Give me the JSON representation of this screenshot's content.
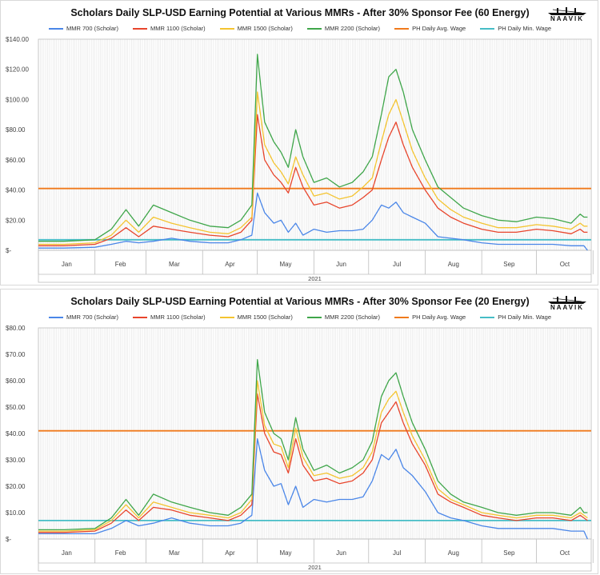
{
  "logo": {
    "text": "NAAVIK"
  },
  "colors": {
    "mmr700": "#4a86e8",
    "mmr1100": "#e8452c",
    "mmr1500": "#f4c430",
    "mmr2200": "#3fa64a",
    "avg_wage": "#f07a1c",
    "min_wage": "#46bdc6"
  },
  "chart_data": [
    {
      "type": "line",
      "title": "Scholars Daily SLP-USD Earning Potential at Various MMRs - After 30% Sponsor Fee (60 Energy)",
      "xlabel": "2021",
      "x_ticks": [
        "Jan",
        "Feb",
        "Mar",
        "Apr",
        "May",
        "Jun",
        "Jul",
        "Aug",
        "Sep",
        "Oct"
      ],
      "ylim": [
        0,
        140
      ],
      "y_ticks": [
        0,
        20,
        40,
        60,
        80,
        100,
        120,
        140
      ],
      "y_tick_labels": [
        "$-",
        "$20.00",
        "$40.00",
        "$60.00",
        "$80.00",
        "$100.00",
        "$120.00",
        "$140.00"
      ],
      "legend_position": "top",
      "grid": "vertical",
      "x": [
        "2021-01-01",
        "2021-01-15",
        "2021-02-01",
        "2021-02-10",
        "2021-02-18",
        "2021-02-25",
        "2021-03-05",
        "2021-03-15",
        "2021-03-25",
        "2021-04-05",
        "2021-04-15",
        "2021-04-22",
        "2021-04-28",
        "2021-05-01",
        "2021-05-05",
        "2021-05-10",
        "2021-05-14",
        "2021-05-18",
        "2021-05-22",
        "2021-05-26",
        "2021-06-01",
        "2021-06-08",
        "2021-06-15",
        "2021-06-22",
        "2021-06-28",
        "2021-07-03",
        "2021-07-08",
        "2021-07-12",
        "2021-07-16",
        "2021-07-20",
        "2021-07-25",
        "2021-08-01",
        "2021-08-08",
        "2021-08-15",
        "2021-08-22",
        "2021-09-01",
        "2021-09-10",
        "2021-09-20",
        "2021-10-01",
        "2021-10-10",
        "2021-10-20",
        "2021-10-25",
        "2021-10-27",
        "2021-10-29"
      ],
      "series": [
        {
          "name": "MMR 700 (Scholar)",
          "color": "#4a86e8",
          "values": [
            1.5,
            1.5,
            2,
            4,
            6,
            5,
            6,
            8,
            6,
            5,
            5,
            7,
            10,
            38,
            25,
            18,
            20,
            12,
            18,
            10,
            14,
            12,
            13,
            13,
            14,
            20,
            30,
            28,
            32,
            25,
            22,
            18,
            9,
            8,
            7,
            5,
            4,
            4,
            4,
            4,
            3,
            3,
            3,
            0
          ]
        },
        {
          "name": "MMR 1100 (Scholar)",
          "color": "#e8452c",
          "values": [
            3,
            3,
            4,
            8,
            15,
            9,
            16,
            14,
            12,
            10,
            9,
            12,
            20,
            90,
            60,
            50,
            45,
            38,
            55,
            42,
            30,
            32,
            28,
            30,
            35,
            40,
            60,
            75,
            85,
            70,
            55,
            40,
            28,
            22,
            18,
            14,
            12,
            12,
            14,
            13,
            11,
            14,
            12,
            12
          ]
        },
        {
          "name": "MMR 1500 (Scholar)",
          "color": "#f4c430",
          "values": [
            4,
            4,
            5,
            10,
            20,
            12,
            22,
            18,
            15,
            12,
            11,
            15,
            22,
            105,
            70,
            58,
            52,
            44,
            62,
            50,
            36,
            38,
            34,
            36,
            42,
            48,
            72,
            90,
            100,
            85,
            66,
            48,
            34,
            27,
            22,
            18,
            15,
            15,
            17,
            16,
            14,
            18,
            16,
            16
          ]
        },
        {
          "name": "MMR 2200 (Scholar)",
          "color": "#3fa64a",
          "values": [
            6,
            6,
            7,
            14,
            27,
            16,
            30,
            25,
            20,
            16,
            15,
            20,
            30,
            130,
            85,
            72,
            65,
            55,
            80,
            62,
            45,
            48,
            42,
            45,
            52,
            62,
            90,
            115,
            120,
            105,
            80,
            60,
            42,
            35,
            28,
            23,
            20,
            19,
            22,
            21,
            18,
            24,
            22,
            22
          ]
        },
        {
          "name": "PH Daily Avg. Wage",
          "color": "#f07a1c",
          "constant": 41
        },
        {
          "name": "PH Daily Min. Wage",
          "color": "#46bdc6",
          "constant": 7
        }
      ]
    },
    {
      "type": "line",
      "title": "Scholars Daily SLP-USD Earning Potential at Various MMRs - After 30% Sponsor Fee (20 Energy)",
      "xlabel": "2021",
      "x_ticks": [
        "Jan",
        "Feb",
        "Mar",
        "Apr",
        "May",
        "Jun",
        "Jul",
        "Aug",
        "Sep",
        "Oct"
      ],
      "ylim": [
        0,
        80
      ],
      "y_ticks": [
        0,
        10,
        20,
        30,
        40,
        50,
        60,
        70,
        80
      ],
      "y_tick_labels": [
        "$-",
        "$10.00",
        "$20.00",
        "$30.00",
        "$40.00",
        "$50.00",
        "$60.00",
        "$70.00",
        "$80.00"
      ],
      "legend_position": "top",
      "grid": "vertical",
      "x": [
        "2021-01-01",
        "2021-01-15",
        "2021-02-01",
        "2021-02-10",
        "2021-02-18",
        "2021-02-25",
        "2021-03-05",
        "2021-03-15",
        "2021-03-25",
        "2021-04-05",
        "2021-04-15",
        "2021-04-22",
        "2021-04-28",
        "2021-05-01",
        "2021-05-05",
        "2021-05-10",
        "2021-05-14",
        "2021-05-18",
        "2021-05-22",
        "2021-05-26",
        "2021-06-01",
        "2021-06-08",
        "2021-06-15",
        "2021-06-22",
        "2021-06-28",
        "2021-07-03",
        "2021-07-08",
        "2021-07-12",
        "2021-07-16",
        "2021-07-20",
        "2021-07-25",
        "2021-08-01",
        "2021-08-08",
        "2021-08-15",
        "2021-08-22",
        "2021-09-01",
        "2021-09-10",
        "2021-09-20",
        "2021-10-01",
        "2021-10-10",
        "2021-10-20",
        "2021-10-25",
        "2021-10-27",
        "2021-10-29"
      ],
      "series": [
        {
          "name": "MMR 700 (Scholar)",
          "color": "#4a86e8",
          "values": [
            2,
            2,
            2,
            4,
            7,
            5,
            6,
            8,
            6,
            5,
            5,
            6,
            9,
            38,
            26,
            20,
            21,
            13,
            20,
            12,
            15,
            14,
            15,
            15,
            16,
            22,
            32,
            30,
            34,
            27,
            24,
            18,
            10,
            8,
            7,
            5,
            4,
            4,
            4,
            4,
            3,
            3,
            3,
            0
          ]
        },
        {
          "name": "MMR 1100 (Scholar)",
          "color": "#e8452c",
          "values": [
            2.5,
            2.5,
            3,
            6,
            11,
            7,
            12,
            11,
            9,
            8,
            7,
            9,
            13,
            55,
            40,
            33,
            32,
            25,
            38,
            28,
            22,
            23,
            21,
            22,
            25,
            30,
            44,
            48,
            52,
            44,
            36,
            28,
            17,
            14,
            12,
            9,
            8,
            7,
            8,
            8,
            7,
            9,
            8,
            7
          ]
        },
        {
          "name": "MMR 1500 (Scholar)",
          "color": "#f4c430",
          "values": [
            3,
            3,
            3.5,
            7,
            13,
            8,
            14,
            12,
            10,
            9,
            8,
            10,
            15,
            60,
            43,
            36,
            35,
            27,
            42,
            31,
            24,
            25,
            23,
            24,
            27,
            33,
            48,
            53,
            56,
            48,
            39,
            30,
            19,
            15,
            13,
            10,
            9,
            8,
            9,
            9,
            8,
            10,
            9,
            8
          ]
        },
        {
          "name": "MMR 2200 (Scholar)",
          "color": "#3fa64a",
          "values": [
            3.5,
            3.5,
            4,
            8,
            15,
            9,
            17,
            14,
            12,
            10,
            9,
            12,
            17,
            68,
            48,
            40,
            38,
            30,
            46,
            34,
            26,
            28,
            25,
            27,
            30,
            37,
            54,
            60,
            63,
            54,
            44,
            34,
            22,
            17,
            14,
            12,
            10,
            9,
            10,
            10,
            9,
            12,
            10,
            10
          ]
        },
        {
          "name": "PH Daily Avg. Wage",
          "color": "#f07a1c",
          "constant": 41
        },
        {
          "name": "PH Daily Min. Wage",
          "color": "#46bdc6",
          "constant": 7
        }
      ]
    }
  ]
}
